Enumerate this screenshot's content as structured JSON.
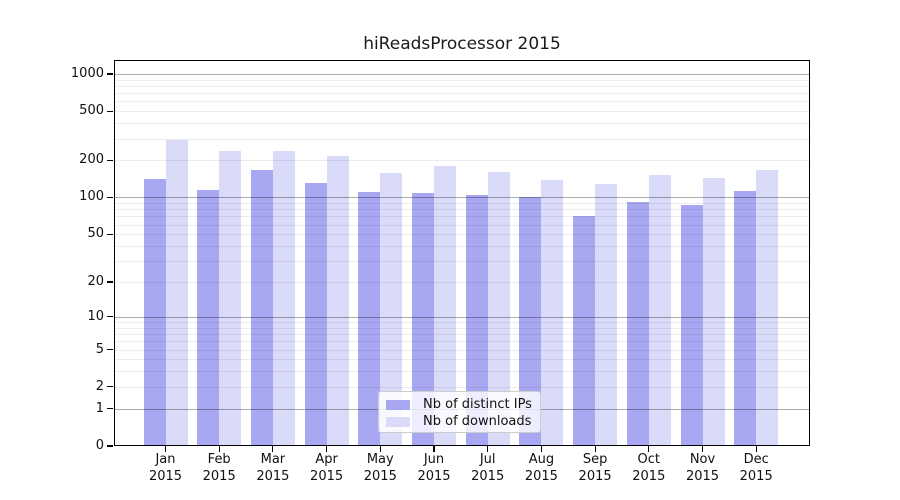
{
  "title": "hiReadsProcessor 2015",
  "chart_data": {
    "type": "bar",
    "title": "hiReadsProcessor 2015",
    "categories": [
      "Jan 2015",
      "Feb 2015",
      "Mar 2015",
      "Apr 2015",
      "May 2015",
      "Jun 2015",
      "Jul 2015",
      "Aug 2015",
      "Sep 2015",
      "Oct 2015",
      "Nov 2015",
      "Dec 2015"
    ],
    "series": [
      {
        "name": "Nb of distinct IPs",
        "color": "#a7a7f2",
        "values": [
          140,
          115,
          166,
          130,
          110,
          109,
          104,
          100,
          71,
          92,
          87,
          112
        ]
      },
      {
        "name": "Nb of downloads",
        "color": "#dadaf9",
        "values": [
          295,
          238,
          240,
          219,
          157,
          179,
          160,
          138,
          128,
          153,
          143,
          168
        ]
      }
    ],
    "xlabel": "",
    "ylabel": "",
    "yscale": "log1p",
    "ylim": [
      0,
      1200
    ],
    "yticks": [
      0,
      1,
      2,
      5,
      10,
      20,
      50,
      100,
      200,
      500,
      1000
    ],
    "major_gridlines": [
      1,
      10,
      100,
      1000
    ],
    "grid": true,
    "legend_position": "lower center inside"
  },
  "legend": {
    "items": [
      {
        "label": "Nb of distinct IPs"
      },
      {
        "label": "Nb of downloads"
      }
    ]
  }
}
